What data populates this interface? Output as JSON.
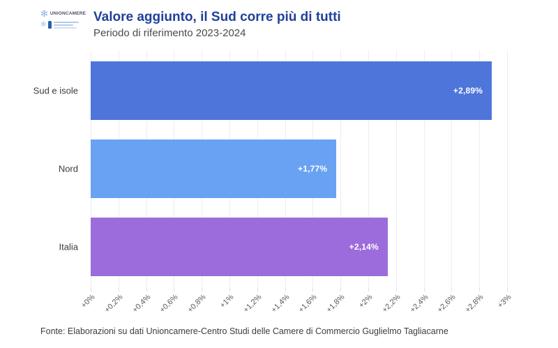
{
  "header": {
    "logo_primary": "UNIONCAMERE",
    "title": "Valore aggiunto, il Sud corre più di tutti",
    "subtitle": "Periodo di riferimento 2023-2024"
  },
  "footer": {
    "source": "Fonte: Elaborazioni su dati Unioncamere-Centro Studi delle Camere di Commercio Guglielmo Tagliacarne"
  },
  "colors": {
    "title_blue": "#21409a",
    "bar_sud_e_isole": "#4d75da",
    "bar_nord": "#69a2f2",
    "bar_italia": "#9c6cdc",
    "gridline": "#ededf2",
    "value_label": "#ffffff"
  },
  "chart_data": {
    "type": "bar",
    "orientation": "horizontal",
    "title": "Valore aggiunto, il Sud corre più di tutti",
    "subtitle": "Periodo di riferimento 2023-2024",
    "categories": [
      "Sud e isole",
      "Nord",
      "Italia"
    ],
    "values": [
      2.89,
      1.77,
      2.14
    ],
    "value_labels": [
      "+2,89%",
      "+1,77%",
      "+2,14%"
    ],
    "bar_colors": [
      "#4d75da",
      "#69a2f2",
      "#9c6cdc"
    ],
    "xlabel": "",
    "ylabel": "",
    "xlim": [
      0,
      3
    ],
    "x_tick_values": [
      0,
      0.2,
      0.4,
      0.6,
      0.8,
      1,
      1.2,
      1.4,
      1.6,
      1.8,
      2,
      2.2,
      2.4,
      2.6,
      2.8,
      3
    ],
    "x_tick_labels": [
      "+0%",
      "+0,2%",
      "+0,4%",
      "+0,6%",
      "+0,8%",
      "+1%",
      "+1,2%",
      "+1,4%",
      "+1,6%",
      "+1,8%",
      "+2%",
      "+2,2%",
      "+2,4%",
      "+2,6%",
      "+2,8%",
      "+3%"
    ],
    "grid": true,
    "legend": false,
    "source": "Fonte: Elaborazioni su dati Unioncamere-Centro Studi delle Camere di Commercio Guglielmo Tagliacarne"
  }
}
